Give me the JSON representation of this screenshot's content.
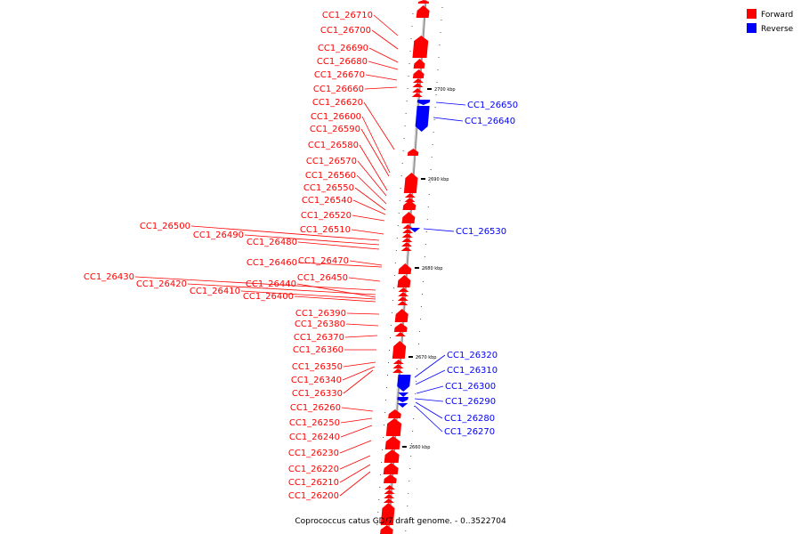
{
  "caption": "Coprococcus catus GD/7 draft genome. - 0..3522704",
  "legend": [
    {
      "label": "Forward",
      "color": "#ff0000"
    },
    {
      "label": "Reverse",
      "color": "#0000ff"
    }
  ],
  "colors": {
    "forward": "#ff0000",
    "reverse": "#0000ff",
    "backbone": "#9a9a9a"
  },
  "ticks": [
    "2700 kbp",
    "2690 kbp",
    "2680 kbp",
    "2670 kbp",
    "2660 kbp"
  ],
  "forward_labels": [
    "CC1_26710",
    "CC1_26700",
    "CC1_26690",
    "CC1_26680",
    "CC1_26670",
    "CC1_26660",
    "CC1_26620",
    "CC1_26600",
    "CC1_26590",
    "CC1_26580",
    "CC1_26570",
    "CC1_26560",
    "CC1_26550",
    "CC1_26540",
    "CC1_26520",
    "CC1_26510",
    "CC1_26500",
    "CC1_26490",
    "CC1_26480",
    "CC1_26470",
    "CC1_26460",
    "CC1_26450",
    "CC1_26430",
    "CC1_26420",
    "CC1_26440",
    "CC1_26410",
    "CC1_26400",
    "CC1_26390",
    "CC1_26380",
    "CC1_26370",
    "CC1_26360",
    "CC1_26350",
    "CC1_26340",
    "CC1_26330",
    "CC1_26260",
    "CC1_26250",
    "CC1_26240",
    "CC1_26230",
    "CC1_26220",
    "CC1_26210",
    "CC1_26200"
  ],
  "reverse_labels": [
    "CC1_26650",
    "CC1_26640",
    "CC1_26530",
    "CC1_26320",
    "CC1_26310",
    "CC1_26300",
    "CC1_26290",
    "CC1_26280",
    "CC1_26270"
  ]
}
